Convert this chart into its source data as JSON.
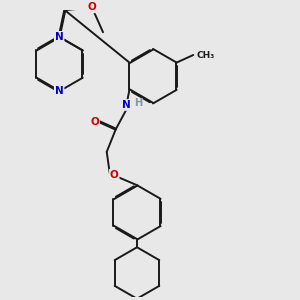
{
  "background_color": "#e8e8e8",
  "bond_color": "#1a1a1a",
  "atom_colors": {
    "N": "#0000cc",
    "O": "#cc0000",
    "H": "#7a9aaa",
    "C": "#1a1a1a"
  },
  "figsize": [
    3.0,
    3.0
  ],
  "dpi": 100,
  "lw": 1.4,
  "double_sep": 0.018
}
